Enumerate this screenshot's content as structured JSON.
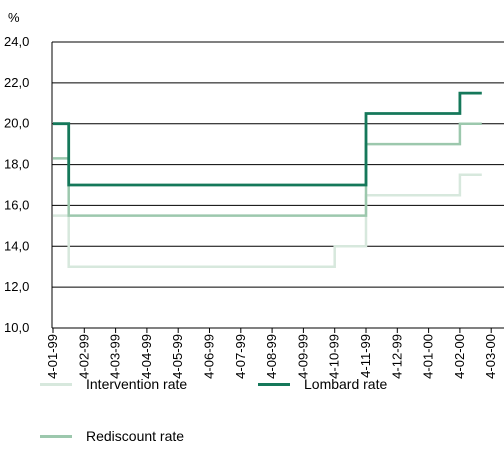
{
  "chart_data": {
    "type": "line",
    "unit_label": "%",
    "xlabel": "",
    "ylabel": "",
    "ylim": [
      10,
      24
    ],
    "yticks": [
      "10,0",
      "12,0",
      "14,0",
      "16,0",
      "18,0",
      "20,0",
      "22,0",
      "24,0"
    ],
    "grid": "horizontal",
    "categories": [
      "4-01-99",
      "4-02-99",
      "4-03-99",
      "4-04-99",
      "4-05-99",
      "4-06-99",
      "4-07-99",
      "4-08-99",
      "4-09-99",
      "4-10-99",
      "4-11-99",
      "4-12-99",
      "4-01-00",
      "4-02-00",
      "4-03-00"
    ],
    "series": [
      {
        "name": "Intervention rate",
        "color": "#d7e8dd",
        "steps": [
          {
            "x": 0.0,
            "y": 15.5
          },
          {
            "x": 0.5,
            "y": 15.5
          },
          {
            "x": 0.5,
            "y": 13.0
          },
          {
            "x": 9.0,
            "y": 13.0
          },
          {
            "x": 9.0,
            "y": 14.0
          },
          {
            "x": 10.0,
            "y": 14.0
          },
          {
            "x": 10.0,
            "y": 16.5
          },
          {
            "x": 13.0,
            "y": 16.5
          },
          {
            "x": 13.0,
            "y": 17.5
          },
          {
            "x": 13.7,
            "y": 17.5
          }
        ]
      },
      {
        "name": "Rediscount rate",
        "color": "#9cc8ad",
        "steps": [
          {
            "x": 0.0,
            "y": 18.3
          },
          {
            "x": 0.5,
            "y": 18.3
          },
          {
            "x": 0.5,
            "y": 15.5
          },
          {
            "x": 10.0,
            "y": 15.5
          },
          {
            "x": 10.0,
            "y": 19.0
          },
          {
            "x": 13.0,
            "y": 19.0
          },
          {
            "x": 13.0,
            "y": 20.0
          },
          {
            "x": 13.7,
            "y": 20.0
          }
        ]
      },
      {
        "name": "Lombard rate",
        "color": "#15785a",
        "steps": [
          {
            "x": 0.0,
            "y": 20.0
          },
          {
            "x": 0.5,
            "y": 20.0
          },
          {
            "x": 0.5,
            "y": 17.0
          },
          {
            "x": 10.0,
            "y": 17.0
          },
          {
            "x": 10.0,
            "y": 20.5
          },
          {
            "x": 13.0,
            "y": 20.5
          },
          {
            "x": 13.0,
            "y": 21.5
          },
          {
            "x": 13.7,
            "y": 21.5
          }
        ]
      }
    ],
    "legend": [
      "Intervention rate",
      "Lombard rate",
      "Rediscount rate"
    ],
    "legend_position": "bottom"
  }
}
